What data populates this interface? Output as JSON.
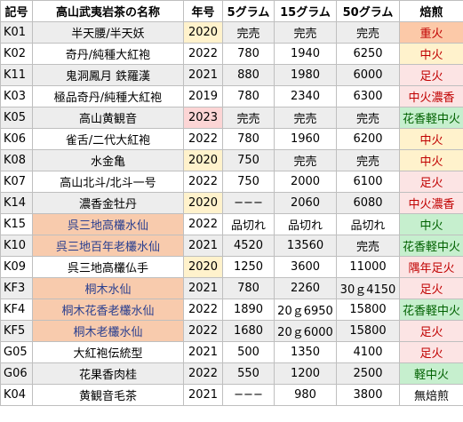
{
  "headers": [
    "記号",
    "高山武夷岩茶の名称",
    "年号",
    "5グラム",
    "15グラム",
    "50グラム",
    "焙煎"
  ],
  "rows": [
    {
      "code": "K01",
      "name": "半天腰/半天妖",
      "year": "2020",
      "g5": "完売",
      "g15": "完売",
      "g50": "完売",
      "roast": "重火",
      "bg": "#ededed",
      "name_bg": "#ededed",
      "name_color": "#000000",
      "year_bg": "#fff2cc",
      "roast_bg": "#fcc9a8",
      "roast_color": "#c00000"
    },
    {
      "code": "K02",
      "name": "奇丹/純種大紅袍",
      "year": "2022",
      "g5": "780",
      "g15": "1940",
      "g50": "6250",
      "roast": "中火",
      "bg": "#ffffff",
      "name_bg": "#ffffff",
      "name_color": "#000000",
      "year_bg": "#ffffff",
      "roast_bg": "#fff2cc",
      "roast_color": "#c00000"
    },
    {
      "code": "K11",
      "name": "鬼洞鳳月 鉄羅漢",
      "year": "2021",
      "g5": "880",
      "g15": "1980",
      "g50": "6000",
      "roast": "足火",
      "bg": "#ededed",
      "name_bg": "#ededed",
      "name_color": "#000000",
      "year_bg": "#ededed",
      "roast_bg": "#fce4e4",
      "roast_color": "#c00000"
    },
    {
      "code": "K03",
      "name": "極品奇丹/純種大紅袍",
      "year": "2019",
      "g5": "780",
      "g15": "2340",
      "g50": "6300",
      "roast": "中火濃香",
      "bg": "#ffffff",
      "name_bg": "#ffffff",
      "name_color": "#000000",
      "year_bg": "#ffffff",
      "roast_bg": "#fce4e4",
      "roast_color": "#c00000"
    },
    {
      "code": "K05",
      "name": "高山黄観音",
      "year": "2023",
      "g5": "完売",
      "g15": "完売",
      "g50": "完売",
      "roast": "花香軽中火",
      "bg": "#ededed",
      "name_bg": "#ededed",
      "name_color": "#000000",
      "year_bg": "#fcd5d5",
      "roast_bg": "#c6efce",
      "roast_color": "#006100"
    },
    {
      "code": "K06",
      "name": "雀舌/二代大紅袍",
      "year": "2022",
      "g5": "780",
      "g15": "1960",
      "g50": "6200",
      "roast": "中火",
      "bg": "#ffffff",
      "name_bg": "#ffffff",
      "name_color": "#000000",
      "year_bg": "#ffffff",
      "roast_bg": "#fff2cc",
      "roast_color": "#c00000"
    },
    {
      "code": "K08",
      "name": "水金亀",
      "year": "2020",
      "g5": "750",
      "g15": "完売",
      "g50": "完売",
      "roast": "中火",
      "bg": "#ededed",
      "name_bg": "#ededed",
      "name_color": "#000000",
      "year_bg": "#fff2cc",
      "roast_bg": "#fff2cc",
      "roast_color": "#c00000"
    },
    {
      "code": "K07",
      "name": "高山北斗/北斗一号",
      "year": "2022",
      "g5": "750",
      "g15": "2000",
      "g50": "6100",
      "roast": "足火",
      "bg": "#ffffff",
      "name_bg": "#ffffff",
      "name_color": "#000000",
      "year_bg": "#ffffff",
      "roast_bg": "#fce4e4",
      "roast_color": "#c00000"
    },
    {
      "code": "K14",
      "name": "濃香金牡丹",
      "year": "2020",
      "g5": "−−−",
      "g15": "2060",
      "g50": "6080",
      "roast": "中火濃香",
      "bg": "#ededed",
      "name_bg": "#ededed",
      "name_color": "#000000",
      "year_bg": "#fff2cc",
      "roast_bg": "#fce4e4",
      "roast_color": "#c00000"
    },
    {
      "code": "K15",
      "name": "呉三地高欉水仙",
      "year": "2022",
      "g5": "品切れ",
      "g15": "品切れ",
      "g50": "品切れ",
      "roast": "中火",
      "bg": "#ffffff",
      "name_bg": "#f8cbad",
      "name_color": "#2a3f8f",
      "year_bg": "#ffffff",
      "roast_bg": "#c6efce",
      "roast_color": "#006100"
    },
    {
      "code": "K10",
      "name": "呉三地百年老欉水仙",
      "year": "2021",
      "g5": "4520",
      "g15": "13560",
      "g50": "完売",
      "roast": "花香軽中火",
      "bg": "#ededed",
      "name_bg": "#f8cbad",
      "name_color": "#2a3f8f",
      "year_bg": "#ededed",
      "roast_bg": "#c6efce",
      "roast_color": "#006100"
    },
    {
      "code": "K09",
      "name": "呉三地高欉仏手",
      "year": "2020",
      "g5": "1250",
      "g15": "3600",
      "g50": "11000",
      "roast": "隅年足火",
      "bg": "#ffffff",
      "name_bg": "#ffffff",
      "name_color": "#000000",
      "year_bg": "#fff2cc",
      "roast_bg": "#fce4e4",
      "roast_color": "#c00000"
    },
    {
      "code": "KF3",
      "name": "桐木水仙",
      "year": "2021",
      "g5": "780",
      "g15": "2260",
      "g50": "30ｇ4150",
      "roast": "足火",
      "bg": "#ededed",
      "name_bg": "#f8cbad",
      "name_color": "#2a3f8f",
      "year_bg": "#ededed",
      "roast_bg": "#fce4e4",
      "roast_color": "#c00000"
    },
    {
      "code": "KF4",
      "name": "桐木花香老欉水仙",
      "year": "2022",
      "g5": "1890",
      "g15": "20ｇ6950",
      "g50": "15800",
      "roast": "花香軽中火",
      "bg": "#ffffff",
      "name_bg": "#f8cbad",
      "name_color": "#2a3f8f",
      "year_bg": "#ffffff",
      "roast_bg": "#c6efce",
      "roast_color": "#006100"
    },
    {
      "code": "KF5",
      "name": "桐木老欉水仙",
      "year": "2022",
      "g5": "1680",
      "g15": "20ｇ6000",
      "g50": "15800",
      "roast": "足火",
      "bg": "#ededed",
      "name_bg": "#f8cbad",
      "name_color": "#2a3f8f",
      "year_bg": "#ededed",
      "roast_bg": "#fce4e4",
      "roast_color": "#c00000"
    },
    {
      "code": "G05",
      "name": "大紅袍伝統型",
      "year": "2021",
      "g5": "500",
      "g15": "1350",
      "g50": "4100",
      "roast": "足火",
      "bg": "#ffffff",
      "name_bg": "#ffffff",
      "name_color": "#000000",
      "year_bg": "#ffffff",
      "roast_bg": "#fce4e4",
      "roast_color": "#c00000"
    },
    {
      "code": "G06",
      "name": "花果香肉桂",
      "year": "2022",
      "g5": "550",
      "g15": "1200",
      "g50": "2500",
      "roast": "軽中火",
      "bg": "#ededed",
      "name_bg": "#ededed",
      "name_color": "#000000",
      "year_bg": "#ededed",
      "roast_bg": "#c6efce",
      "roast_color": "#006100"
    },
    {
      "code": "K04",
      "name": "黄観音毛茶",
      "year": "2021",
      "g5": "−−−",
      "g15": "980",
      "g50": "3800",
      "roast": "無焙煎",
      "bg": "#ffffff",
      "name_bg": "#ffffff",
      "name_color": "#000000",
      "year_bg": "#ffffff",
      "roast_bg": "#ffffff",
      "roast_color": "#000000"
    }
  ]
}
